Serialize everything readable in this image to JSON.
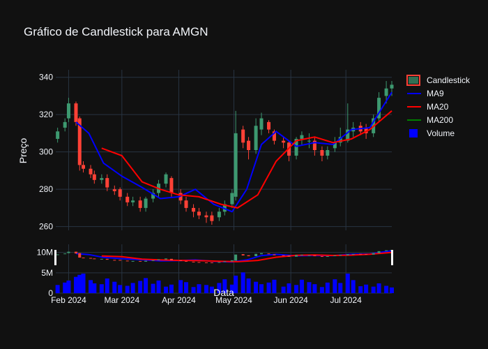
{
  "chart_data": {
    "type": "candlestick",
    "title": "Gráfico de Candlestick para AMGN",
    "xlabel": "Data",
    "ylabel": "Preço",
    "x_range": [
      "2024-01-25",
      "2024-07-26"
    ],
    "x_ticks": [
      "Feb 2024",
      "Mar 2024",
      "Apr 2024",
      "May 2024",
      "Jun 2024",
      "Jul 2024"
    ],
    "price_ylim": [
      258,
      344
    ],
    "price_ticks": [
      "260",
      "280",
      "300",
      "320",
      "340"
    ],
    "volume_ticks": [
      "0",
      "5M",
      "10M"
    ],
    "volume_ylim": [
      0,
      12
    ],
    "grid": true,
    "legend_position": "right",
    "legend": [
      "Candlestick",
      "MA9",
      "MA20",
      "MA200",
      "Volume"
    ],
    "colors": {
      "background": "#111111",
      "increasing": "#3D9970",
      "decreasing": "#FF4136",
      "ma9": "#0000FF",
      "ma20": "#FF0000",
      "ma200": "#008000",
      "volume": "#0000FF",
      "grid": "#283442"
    },
    "series": [
      {
        "name": "Candlestick",
        "dates": [
          "2024-01-26",
          "2024-01-30",
          "2024-02-01",
          "2024-02-05",
          "2024-02-07",
          "2024-02-09",
          "2024-02-13",
          "2024-02-15",
          "2024-02-19",
          "2024-02-22",
          "2024-02-26",
          "2024-02-29",
          "2024-03-04",
          "2024-03-07",
          "2024-03-11",
          "2024-03-14",
          "2024-03-18",
          "2024-03-21",
          "2024-03-25",
          "2024-03-28",
          "2024-04-02",
          "2024-04-05",
          "2024-04-09",
          "2024-04-12",
          "2024-04-16",
          "2024-04-19",
          "2024-04-23",
          "2024-04-26",
          "2024-04-30",
          "2024-05-02",
          "2024-05-06",
          "2024-05-09",
          "2024-05-13",
          "2024-05-16",
          "2024-05-20",
          "2024-05-23",
          "2024-05-28",
          "2024-05-31",
          "2024-06-04",
          "2024-06-07",
          "2024-06-11",
          "2024-06-14",
          "2024-06-18",
          "2024-06-21",
          "2024-06-25",
          "2024-06-28",
          "2024-07-02",
          "2024-07-05",
          "2024-07-09",
          "2024-07-12",
          "2024-07-16",
          "2024-07-19",
          "2024-07-23",
          "2024-07-26"
        ],
        "open": [
          307,
          313,
          318,
          326,
          318,
          293,
          291,
          288,
          285,
          286,
          280,
          280,
          276,
          273,
          274,
          270,
          275,
          278,
          283,
          286,
          278,
          274,
          270,
          268,
          266,
          266,
          265,
          268,
          272,
          276,
          312,
          306,
          301,
          312,
          316,
          311,
          306,
          305,
          298,
          307,
          306,
          306,
          301,
          298,
          302,
          305,
          306,
          311,
          314,
          313,
          310,
          318,
          330,
          334
        ],
        "close": [
          311,
          316,
          326,
          316,
          293,
          291,
          288,
          285,
          286,
          281,
          279,
          276,
          273,
          274,
          270,
          275,
          278,
          283,
          288,
          278,
          274,
          270,
          268,
          266,
          265,
          263,
          268,
          272,
          278,
          310,
          305,
          301,
          314,
          318,
          312,
          306,
          305,
          298,
          307,
          309,
          306,
          301,
          298,
          301,
          305,
          308,
          312,
          313,
          311,
          310,
          318,
          329,
          334,
          336
        ],
        "high": [
          313,
          318,
          329,
          327,
          319,
          295,
          293,
          290,
          288,
          288,
          282,
          281,
          278,
          276,
          276,
          276,
          280,
          285,
          289,
          287,
          280,
          276,
          272,
          270,
          268,
          268,
          270,
          274,
          280,
          322,
          314,
          308,
          318,
          321,
          317,
          312,
          308,
          306,
          308,
          311,
          310,
          308,
          303,
          303,
          308,
          313,
          326,
          316,
          316,
          315,
          320,
          332,
          338,
          338
        ],
        "low": [
          305,
          311,
          316,
          314,
          290,
          289,
          286,
          283,
          283,
          279,
          277,
          274,
          271,
          271,
          268,
          268,
          273,
          276,
          281,
          276,
          272,
          268,
          265,
          264,
          262,
          261,
          263,
          266,
          270,
          274,
          302,
          296,
          299,
          309,
          310,
          304,
          302,
          295,
          296,
          304,
          302,
          298,
          295,
          296,
          300,
          303,
          305,
          308,
          309,
          307,
          308,
          316,
          326,
          330
        ]
      },
      {
        "name": "MA9",
        "x": [
          "2024-02-05",
          "2024-02-12",
          "2024-02-20",
          "2024-03-01",
          "2024-03-12",
          "2024-03-22",
          "2024-04-01",
          "2024-04-10",
          "2024-04-20",
          "2024-04-30",
          "2024-05-08",
          "2024-05-16",
          "2024-05-24",
          "2024-06-04",
          "2024-06-14",
          "2024-06-24",
          "2024-07-04",
          "2024-07-14",
          "2024-07-26"
        ],
        "values": [
          316,
          310,
          294,
          287,
          281,
          275,
          276,
          280,
          272,
          268,
          280,
          304,
          311,
          303,
          305,
          304,
          312,
          313,
          332
        ]
      },
      {
        "name": "MA20",
        "x": [
          "2024-02-19",
          "2024-03-01",
          "2024-03-12",
          "2024-03-22",
          "2024-04-01",
          "2024-04-12",
          "2024-04-24",
          "2024-05-03",
          "2024-05-14",
          "2024-05-24",
          "2024-06-04",
          "2024-06-14",
          "2024-06-24",
          "2024-07-04",
          "2024-07-14",
          "2024-07-26"
        ],
        "values": [
          302,
          298,
          284,
          280,
          277,
          276,
          272,
          270,
          277,
          295,
          306,
          308,
          305,
          307,
          312,
          322
        ]
      },
      {
        "name": "MA200",
        "x": [],
        "values": []
      },
      {
        "name": "Volume",
        "values_millions": [
          2.0,
          2.6,
          3.1,
          4.0,
          4.5,
          4.8,
          3.2,
          2.4,
          2.2,
          3.6,
          2.8,
          2.0,
          1.8,
          2.5,
          3.0,
          3.7,
          2.3,
          3.1,
          1.6,
          2.1,
          3.2,
          2.7,
          1.5,
          2.2,
          2.0,
          1.6,
          2.5,
          3.4,
          2.1,
          4.3,
          5.1,
          3.6,
          2.8,
          2.2,
          2.6,
          3.3,
          1.6,
          2.4,
          2.0,
          3.3,
          2.7,
          2.2,
          1.5,
          2.6,
          3.4,
          2.5,
          4.8,
          3.2,
          1.7,
          2.1,
          1.6,
          2.4,
          1.8,
          1.4
        ]
      }
    ]
  }
}
